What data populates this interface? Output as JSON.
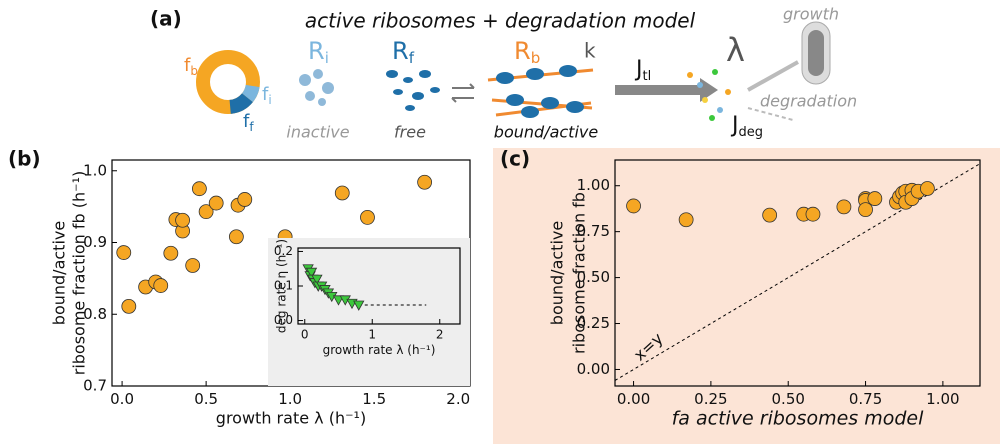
{
  "schematic": {
    "panel_label": "(a)",
    "title": "active ribosomes + degradation model",
    "fb": {
      "main": "f",
      "sub": "b"
    },
    "fi": {
      "main": "f",
      "sub": "i"
    },
    "ff": {
      "main": "f",
      "sub": "f"
    },
    "Ri": {
      "main": "R",
      "sub": "i"
    },
    "Rf": {
      "main": "R",
      "sub": "f"
    },
    "Rb": {
      "main": "R",
      "sub": "b"
    },
    "k": "k",
    "Jtl": {
      "main": "J",
      "sub": "tl"
    },
    "lambda": "λ",
    "growth": "growth",
    "degradation": "degradation",
    "Jdeg": {
      "main": "J",
      "sub": "deg"
    },
    "inactive": "inactive",
    "free": "free",
    "bound": "bound/active"
  },
  "chart_data": [
    {
      "type": "scatter",
      "panel_label": "(b)",
      "xlabel": "growth rate λ (h⁻¹)",
      "ylabel": [
        "bound/active",
        "ribosome fraction fb (h⁻¹)"
      ],
      "x": [
        0.01,
        0.04,
        0.14,
        0.2,
        0.23,
        0.29,
        0.32,
        0.36,
        0.36,
        0.42,
        0.46,
        0.5,
        0.56,
        0.68,
        0.69,
        0.73,
        0.97,
        1.31,
        1.46,
        1.8
      ],
      "values": [
        0.886,
        0.811,
        0.838,
        0.845,
        0.84,
        0.885,
        0.932,
        0.916,
        0.931,
        0.868,
        0.975,
        0.943,
        0.955,
        0.908,
        0.952,
        0.96,
        0.908,
        0.969,
        0.935,
        0.984
      ],
      "color": "#f5a623",
      "marker": "circle",
      "xlim": [
        -0.06,
        2.07
      ],
      "ylim": [
        0.7,
        1.015
      ],
      "xticks": [
        {
          "value": 0,
          "label": "0.0"
        },
        0.5,
        {
          "value": 1,
          "label": "1.0"
        },
        1.5,
        {
          "value": 2,
          "label": "2.0"
        }
      ],
      "yticks": [
        0.7,
        0.8,
        0.9,
        {
          "value": 1,
          "label": "1.0"
        }
      ]
    },
    {
      "type": "scatter",
      "inset": true,
      "xlabel": "growth rate λ (h⁻¹)",
      "ylabel": [
        "deg rate η (h⁻¹)"
      ],
      "x": [
        0.05,
        0.08,
        0.1,
        0.12,
        0.15,
        0.18,
        0.2,
        0.25,
        0.3,
        0.35,
        0.4,
        0.5,
        0.6,
        0.7,
        0.8
      ],
      "values": [
        0.15,
        0.13,
        0.14,
        0.12,
        0.11,
        0.12,
        0.1,
        0.1,
        0.09,
        0.08,
        0.07,
        0.06,
        0.06,
        0.05,
        0.045
      ],
      "color": "#3cc83c",
      "marker": "triangle",
      "reference_line": {
        "x": [
          0.8,
          1.8
        ],
        "values": [
          0.045,
          0.045
        ]
      },
      "xlim": [
        -0.1,
        2.3
      ],
      "ylim": [
        -0.01,
        0.21
      ],
      "xticks": [
        0,
        1,
        2
      ],
      "yticks": [
        {
          "value": 0,
          "label": "0.0"
        },
        0.1,
        {
          "value": 0.2,
          "label": "0.2"
        }
      ]
    },
    {
      "type": "scatter",
      "panel_label": "(c)",
      "xlabel": "fa active ribosomes model",
      "ylabel": [
        "bound/active",
        "ribosome fraction fb"
      ],
      "diagonal": true,
      "annotation": "x=y",
      "x": [
        0.0,
        0.17,
        0.44,
        0.55,
        0.58,
        0.68,
        0.75,
        0.75,
        0.75,
        0.78,
        0.85,
        0.86,
        0.87,
        0.88,
        0.88,
        0.9,
        0.9,
        0.92,
        0.95
      ],
      "values": [
        0.89,
        0.815,
        0.84,
        0.845,
        0.845,
        0.885,
        0.93,
        0.92,
        0.87,
        0.93,
        0.91,
        0.94,
        0.96,
        0.97,
        0.91,
        0.975,
        0.93,
        0.97,
        0.985
      ],
      "color": "#f5a623",
      "marker": "circle",
      "xlim": [
        -0.06,
        1.12
      ],
      "ylim": [
        -0.09,
        1.14
      ],
      "xticks": [
        {
          "value": 0,
          "label": "0.00"
        },
        0.25,
        {
          "value": 0.5,
          "label": "0.50"
        },
        0.75,
        {
          "value": 1,
          "label": "1.00"
        }
      ],
      "yticks": [
        {
          "value": 0,
          "label": "0.00"
        },
        0.25,
        {
          "value": 0.5,
          "label": "0.50"
        },
        0.75,
        {
          "value": 1,
          "label": "1.00"
        }
      ]
    }
  ]
}
